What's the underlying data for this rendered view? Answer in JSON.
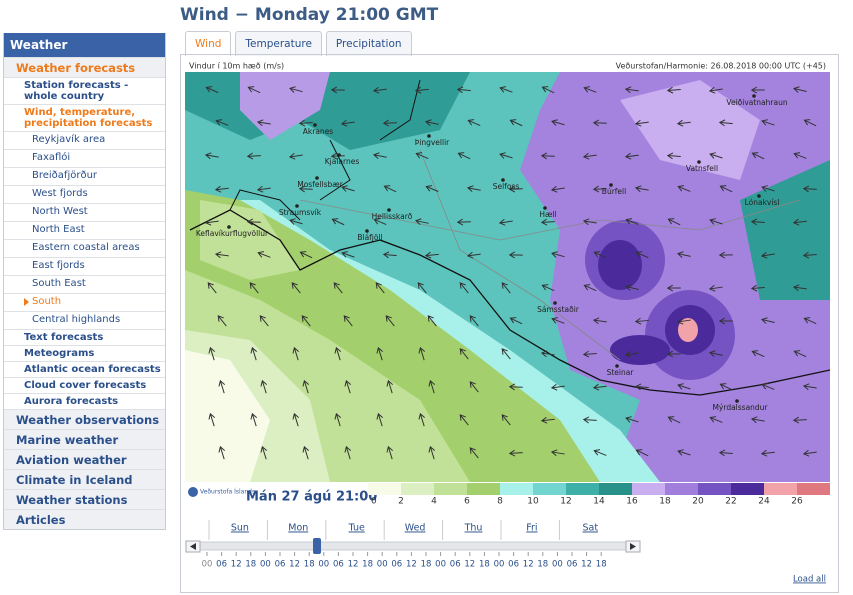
{
  "nav": {
    "title": "Weather",
    "items": [
      {
        "label": "Weather forecasts",
        "items": [
          {
            "label": "Station forecasts - whole country"
          },
          {
            "label": "Wind, temperature, precipitation forecasts",
            "items": [
              {
                "label": "Reykjavík area"
              },
              {
                "label": "Faxaflói"
              },
              {
                "label": "Breiðafjörður"
              },
              {
                "label": "West fjords"
              },
              {
                "label": "North West"
              },
              {
                "label": "North East"
              },
              {
                "label": "Eastern coastal areas"
              },
              {
                "label": "East fjords"
              },
              {
                "label": "South East"
              },
              {
                "label": "South"
              },
              {
                "label": "Central highlands"
              }
            ]
          },
          {
            "label": "Text forecasts"
          },
          {
            "label": "Meteograms"
          },
          {
            "label": "Atlantic ocean forecasts"
          },
          {
            "label": "Cloud cover forecasts"
          },
          {
            "label": "Aurora forecasts"
          }
        ]
      },
      {
        "label": "Weather observations"
      },
      {
        "label": "Marine weather"
      },
      {
        "label": "Aviation weather"
      },
      {
        "label": "Climate in Iceland"
      },
      {
        "label": "Weather stations"
      },
      {
        "label": "Articles"
      }
    ]
  },
  "title": "Wind − Monday 21:00 GMT",
  "tabs": [
    "Wind",
    "Temperature",
    "Precipitation"
  ],
  "map": {
    "caption_left": "Vindur í 10m hæð (m/s)",
    "caption_right": "Veðurstofan/Harmonie: 26.08.2018 00:00 UTC (+45)",
    "places": [
      "Akranes",
      "Kjalarnes",
      "Þingvellir",
      "Mosfellsbær",
      "Straumsvík",
      "Keflavíkurflugvöllur",
      "Hellisskarð",
      "Bláfjöll",
      "Selfoss",
      "Hæll",
      "Búrfell",
      "Vatnsfell",
      "Veiðivatnahraun",
      "Lónakvísl",
      "Sámsstaðir",
      "Steinar",
      "Mýrdalssandur"
    ]
  },
  "logo": "Veðurstofa Íslands",
  "valid_time": "Mán 27 ágú 21:00",
  "scale": {
    "values": [
      0,
      2,
      4,
      6,
      8,
      10,
      12,
      14,
      16,
      18,
      20,
      22,
      24,
      26
    ],
    "colors": [
      "#f7fbe8",
      "#dcefc2",
      "#c2e198",
      "#a3d06c",
      "#a8f0ea",
      "#72d5cf",
      "#3fb0a8",
      "#27918a",
      "#c9aef0",
      "#a17ddc",
      "#7553c2",
      "#4b2b9c",
      "#f2a3aa",
      "#e07880"
    ]
  },
  "timeline": {
    "days": [
      "Sun",
      "Mon",
      "Tue",
      "Wed",
      "Thu",
      "Fri",
      "Sat"
    ],
    "hours": [
      "00",
      "06",
      "12",
      "18",
      "00",
      "06",
      "12",
      "18",
      "00",
      "06",
      "12",
      "18",
      "00",
      "06",
      "12",
      "18",
      "00",
      "06",
      "12",
      "18",
      "00",
      "06",
      "12",
      "18",
      "00",
      "06",
      "12",
      "18"
    ],
    "load_all": "Load all"
  }
}
